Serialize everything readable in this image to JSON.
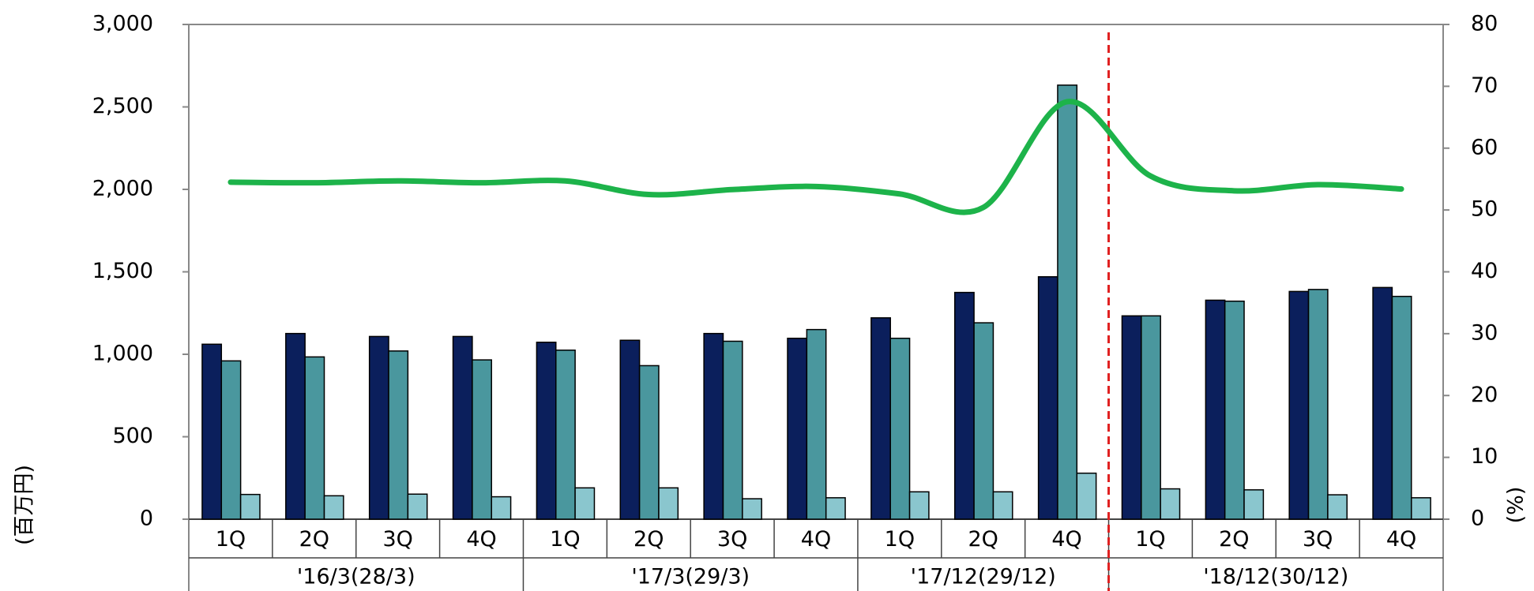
{
  "chart_data": {
    "type": "bar-line",
    "y_label": "(百万円)",
    "y2_label": "(%)",
    "groups": [
      {
        "label": "'16/3(28/3)",
        "categories": [
          "1Q",
          "2Q",
          "3Q",
          "4Q"
        ]
      },
      {
        "label": "'17/3(29/3)",
        "categories": [
          "1Q",
          "2Q",
          "3Q",
          "4Q"
        ]
      },
      {
        "label": "'17/12(29/12)",
        "categories": [
          "1Q",
          "2Q",
          "4Q"
        ]
      },
      {
        "label": "'18/12(30/12)",
        "categories": [
          "1Q",
          "2Q",
          "3Q",
          "4Q"
        ]
      }
    ],
    "series": [
      {
        "type": "bar",
        "color": "#0b1f5c",
        "values": [
          1061,
          1126,
          1108,
          1108,
          1073,
          1085,
          1126,
          1097,
          1221,
          1375,
          1470,
          1233,
          1328,
          1381,
          1405
        ]
      },
      {
        "type": "bar",
        "color": "#4a979e",
        "values": [
          960,
          984,
          1020,
          966,
          1025,
          931,
          1079,
          1150,
          1097,
          1191,
          2632,
          1233,
          1322,
          1393,
          1351
        ]
      },
      {
        "type": "bar",
        "color": "#8ac6ce",
        "values": [
          150,
          142,
          152,
          136,
          190,
          190,
          124,
          130,
          166,
          166,
          279,
          184,
          178,
          148,
          130
        ]
      },
      {
        "type": "line",
        "axis": "y2",
        "color": "#1db34a",
        "values": [
          54.5,
          54.4,
          54.7,
          54.4,
          54.7,
          52.5,
          53.3,
          53.8,
          52.6,
          50.4,
          67.5,
          55.5,
          53.1,
          54.1,
          53.4
        ]
      }
    ],
    "ylim": [
      0,
      3000
    ],
    "yticks": [
      0,
      500,
      {
        "value": 1000,
        "label": "1,000"
      },
      {
        "value": 1500,
        "label": "1,500"
      },
      {
        "value": 2000,
        "label": "2,000"
      },
      {
        "value": 2500,
        "label": "2,500"
      },
      {
        "value": 3000,
        "label": "3,000"
      }
    ],
    "y2lim": [
      0,
      80
    ],
    "y2ticks": [
      0,
      10,
      20,
      30,
      40,
      50,
      60,
      70,
      80
    ]
  }
}
